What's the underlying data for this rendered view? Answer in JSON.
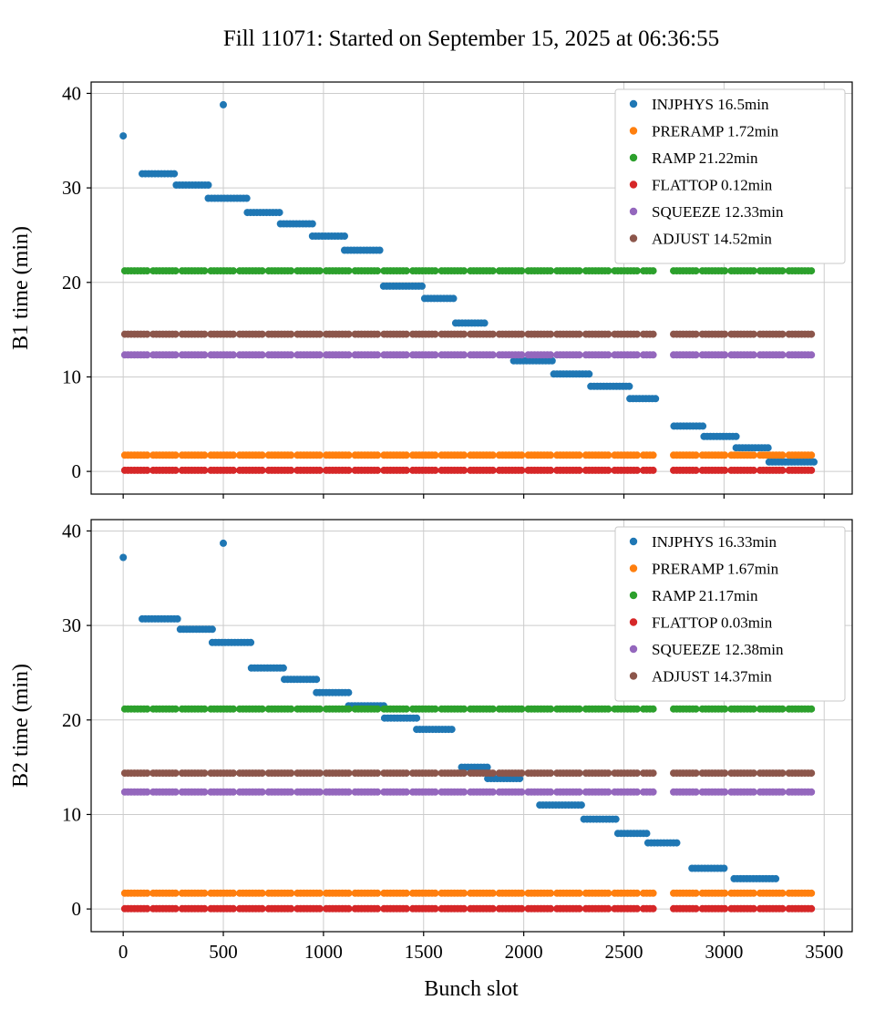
{
  "title": "Fill 11071: Started on September 15, 2025 at 06:36:55",
  "xlabel": "Bunch slot",
  "chart_data": [
    {
      "type": "scatter",
      "ylabel": "B1 time (min)",
      "xlim": [
        -160,
        3640
      ],
      "ylim": [
        -2.4,
        41.2
      ],
      "xticks": [
        0,
        500,
        1000,
        1500,
        2000,
        2500,
        3000,
        3500
      ],
      "yticks": [
        0,
        10,
        20,
        30,
        40
      ],
      "grid": true,
      "legend_position": "upper right",
      "bunch_segments": [
        [
          8,
          132
        ],
        [
          150,
          276
        ],
        [
          294,
          420
        ],
        [
          438,
          564
        ],
        [
          582,
          708
        ],
        [
          726,
          852
        ],
        [
          870,
          996
        ],
        [
          1014,
          1140
        ],
        [
          1158,
          1284
        ],
        [
          1302,
          1428
        ],
        [
          1446,
          1572
        ],
        [
          1590,
          1716
        ],
        [
          1734,
          1860
        ],
        [
          1878,
          2004
        ],
        [
          2022,
          2148
        ],
        [
          2166,
          2292
        ],
        [
          2310,
          2436
        ],
        [
          2454,
          2580
        ],
        [
          2598,
          2660
        ],
        [
          2748,
          2874
        ],
        [
          2892,
          3018
        ],
        [
          3036,
          3162
        ],
        [
          3180,
          3306
        ],
        [
          3324,
          3450
        ]
      ],
      "series": [
        {
          "name": "INJPHYS",
          "legend": "INJPHYS 16.5min",
          "color": "#1f77b4",
          "style": "steps",
          "points": [
            [
              0,
              35.5
            ],
            [
              500,
              38.8
            ]
          ],
          "steps": [
            [
              95,
              265,
              31.5
            ],
            [
              265,
              425,
              30.3
            ],
            [
              425,
              620,
              28.9
            ],
            [
              620,
              785,
              27.4
            ],
            [
              785,
              945,
              26.2
            ],
            [
              945,
              1105,
              24.9
            ],
            [
              1105,
              1285,
              23.4
            ],
            [
              1300,
              1505,
              19.6
            ],
            [
              1505,
              1660,
              18.3
            ],
            [
              1660,
              1815,
              15.7
            ],
            [
              1950,
              2150,
              11.7
            ],
            [
              2150,
              2335,
              10.3
            ],
            [
              2335,
              2530,
              9.0
            ],
            [
              2530,
              2665,
              7.7
            ],
            [
              2750,
              2900,
              4.8
            ],
            [
              2900,
              3060,
              3.7
            ],
            [
              3060,
              3225,
              2.5
            ],
            [
              3225,
              3450,
              1.0
            ]
          ]
        },
        {
          "name": "PRERAMP",
          "legend": "PRERAMP 1.72min",
          "color": "#ff7f0e",
          "style": "flat",
          "value": 1.72
        },
        {
          "name": "RAMP",
          "legend": "RAMP 21.22min",
          "color": "#2ca02c",
          "style": "flat",
          "value": 21.22
        },
        {
          "name": "FLATTOP",
          "legend": "FLATTOP 0.12min",
          "color": "#d62728",
          "style": "flat",
          "value": 0.12
        },
        {
          "name": "SQUEEZE",
          "legend": "SQUEEZE 12.33min",
          "color": "#9467bd",
          "style": "flat",
          "value": 12.33
        },
        {
          "name": "ADJUST",
          "legend": "ADJUST 14.52min",
          "color": "#8c564b",
          "style": "flat",
          "value": 14.52
        }
      ]
    },
    {
      "type": "scatter",
      "ylabel": "B2 time (min)",
      "xlim": [
        -160,
        3640
      ],
      "ylim": [
        -2.4,
        41.2
      ],
      "xticks": [
        0,
        500,
        1000,
        1500,
        2000,
        2500,
        3000,
        3500
      ],
      "yticks": [
        0,
        10,
        20,
        30,
        40
      ],
      "grid": true,
      "legend_position": "upper right",
      "bunch_segments": [
        [
          8,
          132
        ],
        [
          150,
          276
        ],
        [
          294,
          420
        ],
        [
          438,
          564
        ],
        [
          582,
          708
        ],
        [
          726,
          852
        ],
        [
          870,
          996
        ],
        [
          1014,
          1140
        ],
        [
          1158,
          1284
        ],
        [
          1302,
          1428
        ],
        [
          1446,
          1572
        ],
        [
          1590,
          1716
        ],
        [
          1734,
          1860
        ],
        [
          1878,
          2004
        ],
        [
          2022,
          2148
        ],
        [
          2166,
          2292
        ],
        [
          2310,
          2436
        ],
        [
          2454,
          2580
        ],
        [
          2598,
          2660
        ],
        [
          2748,
          2874
        ],
        [
          2892,
          3018
        ],
        [
          3036,
          3162
        ],
        [
          3180,
          3306
        ],
        [
          3324,
          3450
        ]
      ],
      "series": [
        {
          "name": "INJPHYS",
          "legend": "INJPHYS 16.33min",
          "color": "#1f77b4",
          "style": "steps",
          "points": [
            [
              0,
              37.2
            ],
            [
              500,
              38.7
            ]
          ],
          "steps": [
            [
              95,
              285,
              30.7
            ],
            [
              285,
              445,
              29.6
            ],
            [
              445,
              640,
              28.2
            ],
            [
              640,
              805,
              25.5
            ],
            [
              805,
              965,
              24.3
            ],
            [
              965,
              1125,
              22.9
            ],
            [
              1125,
              1305,
              21.5
            ],
            [
              1305,
              1465,
              20.2
            ],
            [
              1465,
              1645,
              19.0
            ],
            [
              1690,
              1820,
              15.0
            ],
            [
              1820,
              1985,
              13.8
            ],
            [
              2080,
              2300,
              11.0
            ],
            [
              2300,
              2470,
              9.5
            ],
            [
              2470,
              2620,
              8.0
            ],
            [
              2620,
              2770,
              7.0
            ],
            [
              2840,
              3010,
              4.3
            ],
            [
              3050,
              3260,
              3.2
            ]
          ]
        },
        {
          "name": "PRERAMP",
          "legend": "PRERAMP 1.67min",
          "color": "#ff7f0e",
          "style": "flat",
          "value": 1.67
        },
        {
          "name": "RAMP",
          "legend": "RAMP 21.17min",
          "color": "#2ca02c",
          "style": "flat",
          "value": 21.17
        },
        {
          "name": "FLATTOP",
          "legend": "FLATTOP 0.03min",
          "color": "#d62728",
          "style": "flat",
          "value": 0.03
        },
        {
          "name": "SQUEEZE",
          "legend": "SQUEEZE 12.38min",
          "color": "#9467bd",
          "style": "flat",
          "value": 12.38
        },
        {
          "name": "ADJUST",
          "legend": "ADJUST 14.37min",
          "color": "#8c564b",
          "style": "flat",
          "value": 14.37
        }
      ]
    }
  ]
}
